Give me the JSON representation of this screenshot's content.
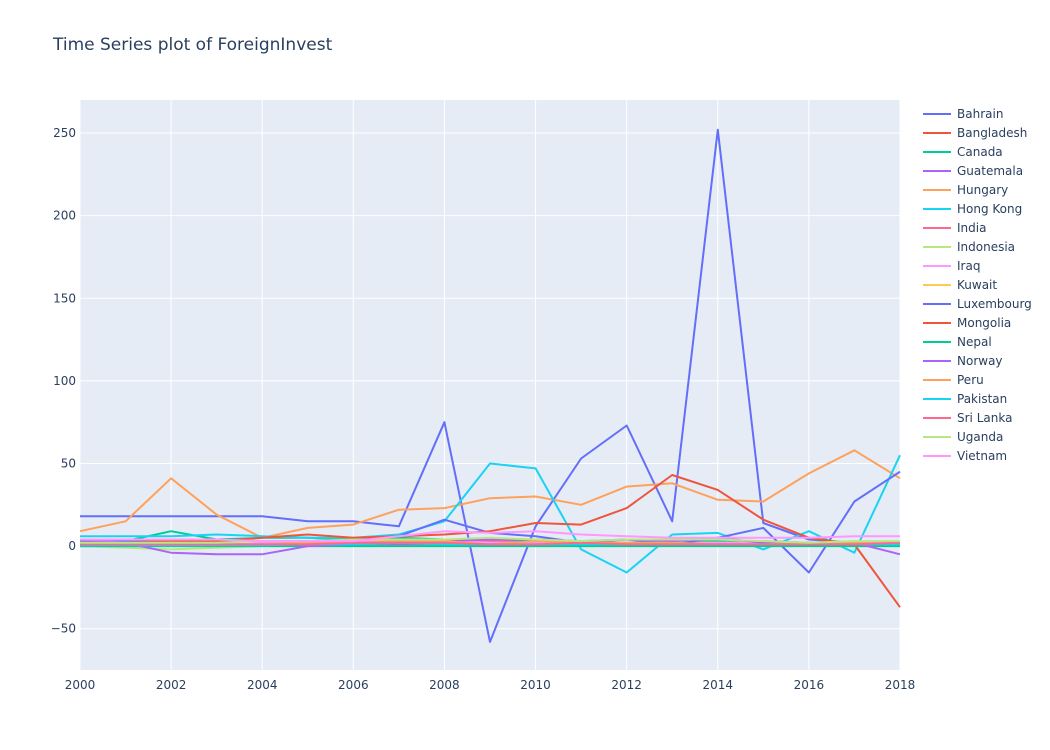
{
  "chart_data": {
    "type": "line",
    "title": "Time Series plot of ForeignInvest",
    "xlabel": "",
    "ylabel": "",
    "xlim": [
      2000,
      2018
    ],
    "ylim": [
      -75,
      270
    ],
    "x_ticks": [
      2000,
      2002,
      2004,
      2006,
      2008,
      2010,
      2012,
      2014,
      2016,
      2018
    ],
    "y_ticks": [
      -50,
      0,
      50,
      100,
      150,
      200,
      250
    ],
    "grid": true,
    "legend_position": "right",
    "x": [
      2000,
      2001,
      2002,
      2003,
      2004,
      2005,
      2006,
      2007,
      2008,
      2009,
      2010,
      2011,
      2012,
      2013,
      2014,
      2015,
      2016,
      2017,
      2018
    ],
    "series": [
      {
        "name": "Bahrain",
        "color": "#636efa",
        "values": [
          18,
          18,
          18,
          18,
          18,
          15,
          15,
          12,
          75,
          -58,
          12,
          53,
          73,
          15,
          252,
          14,
          4,
          2,
          2
        ]
      },
      {
        "name": "Bangladesh",
        "color": "#EF553B",
        "values": [
          0.5,
          0.5,
          0.5,
          0.5,
          0.5,
          0.5,
          0.5,
          0.5,
          0.5,
          0.5,
          0.5,
          0.5,
          0.5,
          1,
          1,
          1,
          1,
          1,
          1
        ]
      },
      {
        "name": "Canada",
        "color": "#00cc96",
        "values": [
          4,
          3,
          9,
          4,
          5,
          5,
          4,
          5,
          4,
          3,
          3,
          2,
          2,
          2,
          3,
          3,
          2,
          2,
          2
        ]
      },
      {
        "name": "Guatemala",
        "color": "#ab63fa",
        "values": [
          1,
          1,
          1,
          1,
          1,
          1,
          1,
          1,
          1,
          1,
          1,
          1,
          1,
          1,
          1,
          1,
          1,
          1,
          1
        ]
      },
      {
        "name": "Hungary",
        "color": "#FFA15A",
        "values": [
          9,
          15,
          41,
          19,
          5,
          11,
          13,
          22,
          23,
          29,
          30,
          25,
          36,
          38,
          28,
          27,
          44,
          58,
          41
        ]
      },
      {
        "name": "Hong Kong",
        "color": "#19d3f3",
        "values": [
          6,
          6,
          6,
          7,
          6,
          5,
          5,
          7,
          15,
          50,
          47,
          -2,
          -16,
          7,
          8,
          -2,
          9,
          -4,
          55
        ]
      },
      {
        "name": "India",
        "color": "#FF6692",
        "values": [
          1,
          1,
          1,
          1,
          1,
          1,
          2,
          2,
          3,
          3,
          2,
          2,
          2,
          2,
          2,
          2,
          2,
          2,
          2
        ]
      },
      {
        "name": "Indonesia",
        "color": "#B6E880",
        "values": [
          0,
          -1,
          -2,
          -1,
          0,
          2,
          1,
          2,
          2,
          1,
          2,
          2,
          2,
          2,
          2,
          2,
          1,
          2,
          1
        ]
      },
      {
        "name": "Iraq",
        "color": "#FF97FF",
        "values": [
          0,
          0,
          0,
          0,
          2,
          3,
          3,
          3,
          3,
          2,
          2,
          2,
          2,
          2,
          2,
          2,
          2,
          2,
          2
        ]
      },
      {
        "name": "Kuwait",
        "color": "#FECB52",
        "values": [
          0,
          0,
          0,
          0,
          0,
          0,
          0,
          0,
          0,
          0,
          0,
          0,
          0,
          0,
          0,
          0,
          0,
          0,
          0
        ]
      },
      {
        "name": "Luxembourg",
        "color": "#636efa",
        "values": [
          3,
          3,
          3,
          3,
          3,
          3,
          4,
          6,
          16,
          8,
          6,
          2,
          4,
          1,
          5,
          11,
          -16,
          27,
          45
        ]
      },
      {
        "name": "Mongolia",
        "color": "#EF553B",
        "values": [
          2,
          2,
          3,
          3,
          5,
          7,
          5,
          6,
          7,
          9,
          14,
          13,
          23,
          43,
          34,
          16,
          5,
          1,
          -37
        ]
      },
      {
        "name": "Nepal",
        "color": "#00cc96",
        "values": [
          0,
          0,
          0,
          0,
          0,
          0,
          0,
          0,
          0,
          0,
          0,
          0,
          0,
          0,
          0,
          0,
          0,
          0,
          0
        ]
      },
      {
        "name": "Norway",
        "color": "#ab63fa",
        "values": [
          4,
          2,
          -4,
          -5,
          -5,
          0,
          1,
          2,
          3,
          4,
          4,
          3,
          4,
          3,
          5,
          2,
          2,
          2,
          -5
        ]
      },
      {
        "name": "Peru",
        "color": "#FFA15A",
        "values": [
          2,
          1,
          2,
          1,
          1,
          2,
          2,
          3,
          3,
          1,
          3,
          2,
          2,
          2,
          1,
          1,
          2,
          2,
          1
        ]
      },
      {
        "name": "Pakistan",
        "color": "#19d3f3",
        "values": [
          0.5,
          0.5,
          0.5,
          0.5,
          0.5,
          1,
          1,
          2,
          1,
          1,
          1,
          1,
          1,
          1,
          1,
          1,
          1,
          1,
          1
        ]
      },
      {
        "name": "Sri Lanka",
        "color": "#FF6692",
        "values": [
          1,
          1,
          1,
          1,
          1,
          1,
          2,
          2,
          2,
          1,
          1,
          2,
          1,
          1,
          1,
          1,
          1,
          1,
          2
        ]
      },
      {
        "name": "Uganda",
        "color": "#B6E880",
        "values": [
          2,
          2,
          2,
          2,
          3,
          3,
          4,
          4,
          4,
          5,
          4,
          3,
          4,
          4,
          4,
          3,
          2,
          3,
          3
        ]
      },
      {
        "name": "Vietnam",
        "color": "#FF97FF",
        "values": [
          4,
          4,
          4,
          4,
          3,
          3,
          3,
          6,
          9,
          8,
          9,
          7,
          6,
          5,
          5,
          5,
          5,
          6,
          6
        ]
      }
    ]
  }
}
